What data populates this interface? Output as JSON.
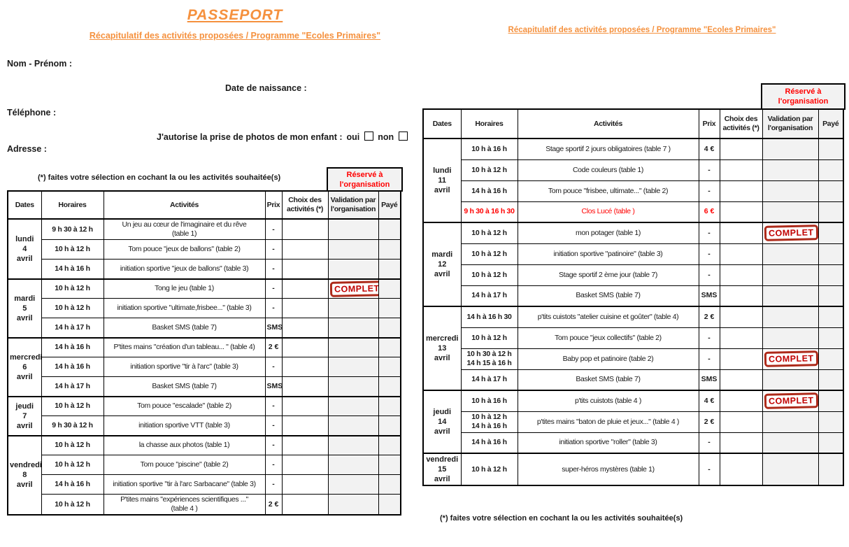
{
  "header": {
    "title": "PASSEPORT",
    "subtitle": "Récapitulatif des activités proposées / Programme \"Ecoles Primaires\"",
    "subtitle_right": "Récapitulatif des activités proposées / Programme \"Ecoles Primaires\""
  },
  "form": {
    "name_label": "Nom - Prénom :",
    "birthdate_label": "Date de naissance :",
    "phone_label": "Téléphone :",
    "photo_question": "J'autorise la prise de photos de mon enfant :",
    "yes_label": "oui",
    "no_label": "non",
    "address_label": "Adresse :"
  },
  "footnote": "(*) faites votre sélection en cochant la ou les activités souhaitée(s)",
  "reserved_label": "Réservé à\nl'organisation",
  "stamp_label": "COMPLET",
  "columns": [
    "Dates",
    "Horaires",
    "Activités",
    "Prix",
    "Choix des\nactivités (*)",
    "Validation par\nl'organisation",
    "Payé"
  ],
  "colors": {
    "accent_orange": "#F5913E",
    "alert_red": "#FF0000",
    "stamp_red": "#C00000",
    "shaded_cell": "#F2F2F2"
  },
  "tables": [
    {
      "name": "week1",
      "groups": [
        {
          "day": "lundi\n4\navril",
          "rows": [
            {
              "time": "9 h 30 à 12 h",
              "activity": "Un jeu au cœur de l'imaginaire et du rêve\n(table 1)",
              "prix": "-"
            },
            {
              "time": "10 h à 12 h",
              "activity": "Tom pouce \"jeux de ballons\" (table 2)",
              "prix": "-"
            },
            {
              "time": "14 h à 16 h",
              "activity": "initiation sportive \"jeux de ballons\" (table 3)",
              "prix": "-"
            }
          ]
        },
        {
          "day": "mardi\n5\navril",
          "rows": [
            {
              "time": "10 h à 12 h",
              "activity": "Tong le jeu (table 1)",
              "prix": "-",
              "stamp": true
            },
            {
              "time": "10 h à 12 h",
              "activity": "initiation sportive \"ultimate,frisbee...\" (table 3)",
              "prix": "-"
            },
            {
              "time": "14 h à 17 h",
              "activity": "Basket SMS (table 7)",
              "prix": "SMS"
            }
          ]
        },
        {
          "day": "mercredi\n6\navril",
          "rows": [
            {
              "time": "14 h à 16 h",
              "activity": "P'tites mains \"création d'un tableau... \" (table 4)",
              "prix": "2 €"
            },
            {
              "time": "14 h à 16 h",
              "activity": "initiation sportive \"tir à l'arc\" (table 3)",
              "prix": "-"
            },
            {
              "time": "14 h à 17 h",
              "activity": "Basket SMS (table 7)",
              "prix": "SMS"
            }
          ]
        },
        {
          "day": "jeudi\n7\navril",
          "rows": [
            {
              "time": "10 h à 12 h",
              "activity": "Tom pouce \"escalade\" (table 2)",
              "prix": "-"
            },
            {
              "time": "9 h 30 à 12 h",
              "activity": "initiation sportive VTT (table 3)",
              "prix": "-"
            }
          ]
        },
        {
          "day": "vendredi\n8\navril",
          "rows": [
            {
              "time": "10 h à 12 h",
              "activity": "la chasse aux photos (table 1)",
              "prix": "-"
            },
            {
              "time": "10 h à 12 h",
              "activity": "Tom pouce \"piscine\" (table 2)",
              "prix": "-"
            },
            {
              "time": "14 h à 16 h",
              "activity": "initiation sportive \"tir à l'arc Sarbacane\" (table 3)",
              "prix": "-"
            },
            {
              "time": "10 h à 12 h",
              "activity": "P'tites mains \"expériences scientifiques ...\"\n(table 4 )",
              "prix": "2 €"
            }
          ]
        }
      ]
    },
    {
      "name": "week2",
      "groups": [
        {
          "day": "lundi\n11\navril",
          "rows": [
            {
              "time": "10 h à 16 h",
              "activity": "Stage sportif 2 jours obligatoires (table 7 )",
              "prix": "4 €"
            },
            {
              "time": "10 h à 12 h",
              "activity": "Code couleurs (table 1)",
              "prix": "-"
            },
            {
              "time": "14 h à 16 h",
              "activity": "Tom pouce \"frisbee, ultimate...\" (table 2)",
              "prix": "-"
            },
            {
              "time": "9 h 30 à 16 h 30",
              "activity": "Clos Lucé (table )",
              "prix": "6 €",
              "red": true
            }
          ]
        },
        {
          "day": "mardi\n12\navril",
          "rows": [
            {
              "time": "10 h à 12 h",
              "activity": "mon potager (table 1)",
              "prix": "-",
              "stamp": true
            },
            {
              "time": "10 h à 12 h",
              "activity": "initiation sportive \"patinoire\" (table 3)",
              "prix": "-"
            },
            {
              "time": "10 h à 12 h",
              "activity": "Stage sportif 2 ème jour (table 7)",
              "prix": "-"
            },
            {
              "time": "14 h à 17 h",
              "activity": "Basket SMS (table 7)",
              "prix": "SMS"
            }
          ]
        },
        {
          "day": "mercredi\n13\navril",
          "rows": [
            {
              "time": "14 h à 16 h 30",
              "activity": "p'tits cuistots \"atelier cuisine et goûter\" (table 4)",
              "prix": "2 €"
            },
            {
              "time": "10 h à 12 h",
              "activity": "Tom pouce \"jeux collectifs\" (table 2)",
              "prix": "-"
            },
            {
              "time": "10 h 30 à 12 h\n14 h 15 à 16 h",
              "activity": "Baby pop et patinoire (table 2)",
              "prix": "-",
              "stamp": true
            },
            {
              "time": "14 h à 17 h",
              "activity": "Basket SMS (table 7)",
              "prix": "SMS"
            }
          ]
        },
        {
          "day": "jeudi\n14\navril",
          "rows": [
            {
              "time": "10 h à 16 h",
              "activity": "p'tits cuistots (table 4 )",
              "prix": "4 €",
              "stamp": true
            },
            {
              "time": "10 h à 12 h\n14 h à 16 h",
              "activity": "p'tites mains \"baton de pluie et jeux...\" (table 4 )",
              "prix": "2 €"
            },
            {
              "time": "14 h à 16 h",
              "activity": "initiation sportive \"roller\" (table 3)",
              "prix": "-"
            }
          ]
        },
        {
          "day": "vendredi\n15\navril",
          "rows": [
            {
              "time": "10 h à 12 h",
              "activity": "super-héros mystères (table 1)",
              "prix": "-"
            }
          ]
        }
      ]
    }
  ]
}
